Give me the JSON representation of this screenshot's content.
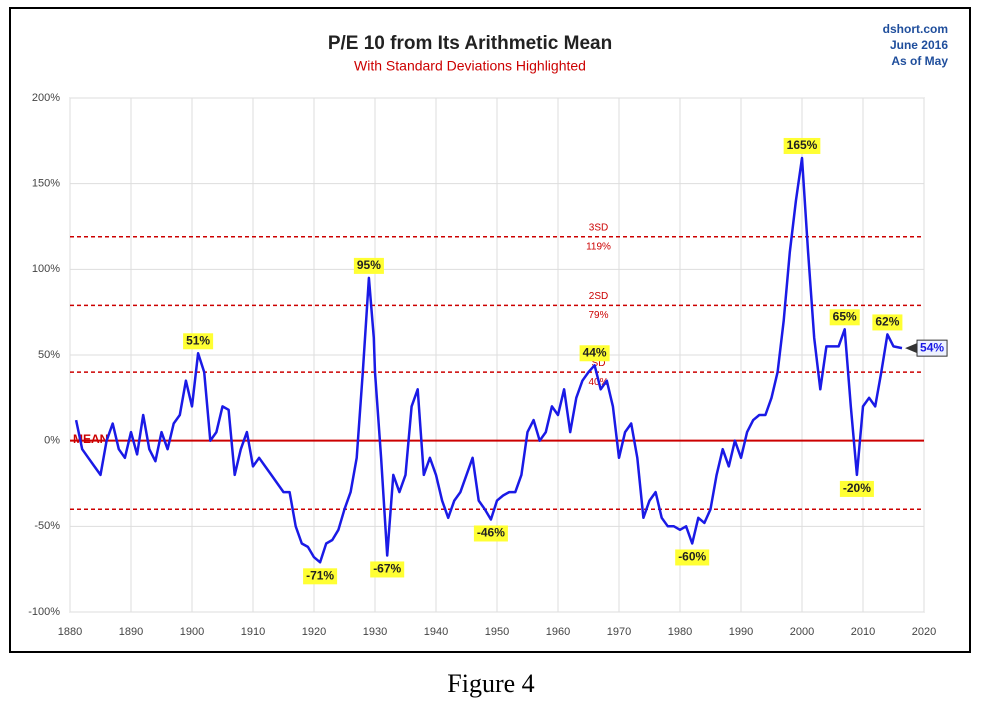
{
  "chart_data": {
    "type": "line",
    "title": "P/E 10 from Its Arithmetic Mean",
    "subtitle": "With Standard Deviations Highlighted",
    "source_lines": [
      "dshort.com",
      "June 2016",
      "As of May"
    ],
    "caption": "Figure 4",
    "color": "#1a1ae6",
    "x": [
      1881,
      1882,
      1883,
      1884,
      1885,
      1886,
      1887,
      1888,
      1889,
      1890,
      1891,
      1892,
      1893,
      1894,
      1895,
      1896,
      1897,
      1898,
      1899,
      1900,
      1901,
      1902,
      1903,
      1904,
      1905,
      1906,
      1907,
      1908,
      1909,
      1910,
      1911,
      1912,
      1913,
      1914,
      1915,
      1916,
      1917,
      1918,
      1919,
      1920,
      1921,
      1922,
      1923,
      1924,
      1925,
      1926,
      1927,
      1928,
      1929,
      1929.8,
      1930,
      1931,
      1932,
      1933,
      1934,
      1935,
      1936,
      1937,
      1938,
      1939,
      1940,
      1941,
      1942,
      1943,
      1944,
      1945,
      1946,
      1947,
      1948,
      1949,
      1950,
      1951,
      1952,
      1953,
      1954,
      1955,
      1956,
      1957,
      1958,
      1959,
      1960,
      1961,
      1962,
      1963,
      1964,
      1965,
      1966,
      1967,
      1968,
      1969,
      1970,
      1971,
      1972,
      1973,
      1974,
      1975,
      1976,
      1977,
      1978,
      1979,
      1980,
      1981,
      1982,
      1983,
      1984,
      1985,
      1986,
      1987,
      1988,
      1989,
      1990,
      1991,
      1992,
      1993,
      1994,
      1995,
      1996,
      1997,
      1998,
      1999,
      2000,
      2001,
      2002,
      2003,
      2004,
      2005,
      2006,
      2007,
      2008,
      2009,
      2010,
      2011,
      2012,
      2013,
      2014,
      2015,
      2016.4
    ],
    "values": [
      12,
      -5,
      -10,
      -15,
      -20,
      0,
      10,
      -5,
      -10,
      5,
      -8,
      15,
      -5,
      -12,
      5,
      -5,
      10,
      15,
      35,
      20,
      51,
      40,
      0,
      5,
      20,
      18,
      -20,
      -5,
      5,
      -15,
      -10,
      -15,
      -20,
      -25,
      -30,
      -30,
      -50,
      -60,
      -62,
      -68,
      -71,
      -60,
      -58,
      -52,
      -40,
      -30,
      -10,
      40,
      95,
      60,
      40,
      -10,
      -67,
      -20,
      -30,
      -20,
      20,
      30,
      -20,
      -10,
      -20,
      -35,
      -45,
      -35,
      -30,
      -20,
      -10,
      -35,
      -40,
      -46,
      -35,
      -32,
      -30,
      -30,
      -20,
      5,
      12,
      0,
      5,
      20,
      15,
      30,
      5,
      25,
      35,
      40,
      44,
      30,
      35,
      20,
      -10,
      5,
      10,
      -10,
      -45,
      -35,
      -30,
      -45,
      -50,
      -50,
      -52,
      -50,
      -60,
      -45,
      -48,
      -40,
      -20,
      -5,
      -15,
      0,
      -10,
      5,
      12,
      15,
      15,
      25,
      40,
      70,
      110,
      140,
      165,
      110,
      60,
      30,
      55,
      55,
      55,
      65,
      20,
      -20,
      20,
      25,
      20,
      40,
      62,
      55,
      54
    ],
    "xlim": [
      1880,
      2020
    ],
    "xticks": [
      1880,
      1890,
      1900,
      1910,
      1920,
      1930,
      1940,
      1950,
      1960,
      1970,
      1980,
      1990,
      2000,
      2010,
      2020
    ],
    "ylim": [
      -100,
      200
    ],
    "yticks": [
      {
        "value": -100,
        "label": "-100%"
      },
      {
        "value": -50,
        "label": "-50%"
      },
      {
        "value": 0,
        "label": "0%"
      },
      {
        "value": 50,
        "label": "50%"
      },
      {
        "value": 100,
        "label": "100%"
      },
      {
        "value": 150,
        "label": "150%"
      },
      {
        "value": 200,
        "label": "200%"
      }
    ],
    "grid": true,
    "reference_color": "#cc0000",
    "reference_lines": [
      {
        "value": 119,
        "label": "3SD",
        "value_label": "119%"
      },
      {
        "value": 79,
        "label": "2SD",
        "value_label": "79%"
      },
      {
        "value": 40,
        "label": "SD",
        "value_label": "40%"
      },
      {
        "value": 0,
        "label": "MEAN"
      },
      {
        "value": -40
      }
    ],
    "annotations": [
      {
        "text": "51%",
        "x": 1901,
        "y": 51
      },
      {
        "text": "95%",
        "x": 1929,
        "y": 95
      },
      {
        "text": "165%",
        "x": 2000,
        "y": 165
      },
      {
        "text": "44%",
        "x": 1966,
        "y": 44
      },
      {
        "text": "65%",
        "x": 2007,
        "y": 65
      },
      {
        "text": "62%",
        "x": 2014,
        "y": 62
      },
      {
        "text": "-71%",
        "x": 1921,
        "y": -71
      },
      {
        "text": "-67%",
        "x": 1932,
        "y": -67
      },
      {
        "text": "-46%",
        "x": 1949,
        "y": -46
      },
      {
        "text": "-60%",
        "x": 1982,
        "y": -60
      },
      {
        "text": "-20%",
        "x": 2009,
        "y": -20
      },
      {
        "text": "54%",
        "x": 2016.4,
        "y": 54
      }
    ]
  }
}
